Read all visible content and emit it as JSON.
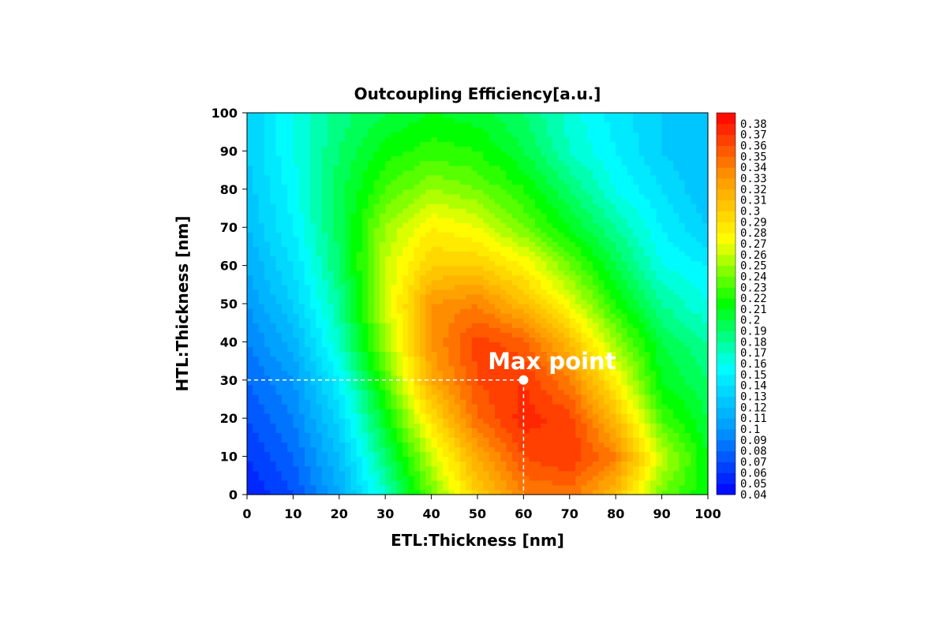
{
  "chart_data": {
    "type": "heatmap",
    "title": "Outcoupling Efficiency[a.u.]",
    "xlabel": "ETL:Thickness [nm]",
    "ylabel": "HTL:Thickness [nm]",
    "xlim": [
      0,
      100
    ],
    "ylim": [
      0,
      100
    ],
    "x_ticks": [
      "0",
      "10",
      "20",
      "30",
      "40",
      "50",
      "60",
      "70",
      "80",
      "90",
      "100"
    ],
    "y_ticks": [
      "0",
      "10",
      "20",
      "30",
      "40",
      "50",
      "60",
      "70",
      "80",
      "90",
      "100"
    ],
    "colorbar": {
      "range": [
        0.04,
        0.39
      ],
      "ticks": [
        "0.04",
        "0.05",
        "0.06",
        "0.07",
        "0.08",
        "0.09",
        "0.1",
        "0.11",
        "0.12",
        "0.13",
        "0.14",
        "0.15",
        "0.16",
        "0.17",
        "0.18",
        "0.19",
        "0.2",
        "0.21",
        "0.22",
        "0.23",
        "0.24",
        "0.25",
        "0.26",
        "0.27",
        "0.28",
        "0.29",
        "0.3",
        "0.31",
        "0.32",
        "0.33",
        "0.34",
        "0.35",
        "0.36",
        "0.37",
        "0.38"
      ],
      "colormap": [
        "#0000ff",
        "#0096ff",
        "#00ffff",
        "#00ff00",
        "#ffff00",
        "#ff9600",
        "#ff0000"
      ]
    },
    "x": [
      0,
      10,
      20,
      30,
      40,
      50,
      60,
      70,
      80,
      90,
      100
    ],
    "y": [
      0,
      10,
      20,
      30,
      40,
      50,
      60,
      70,
      80,
      90,
      100
    ],
    "z": [
      [
        0.05,
        0.07,
        0.11,
        0.17,
        0.24,
        0.3,
        0.34,
        0.345,
        0.31,
        0.24,
        0.21
      ],
      [
        0.06,
        0.08,
        0.12,
        0.19,
        0.26,
        0.32,
        0.36,
        0.37,
        0.34,
        0.26,
        0.21
      ],
      [
        0.07,
        0.09,
        0.135,
        0.21,
        0.29,
        0.35,
        0.375,
        0.365,
        0.31,
        0.23,
        0.2
      ],
      [
        0.08,
        0.1,
        0.15,
        0.23,
        0.32,
        0.36,
        0.37,
        0.34,
        0.28,
        0.21,
        0.19
      ],
      [
        0.09,
        0.115,
        0.17,
        0.25,
        0.33,
        0.365,
        0.355,
        0.31,
        0.25,
        0.2,
        0.18
      ],
      [
        0.1,
        0.13,
        0.18,
        0.26,
        0.33,
        0.34,
        0.31,
        0.27,
        0.22,
        0.18,
        0.16
      ],
      [
        0.11,
        0.14,
        0.19,
        0.26,
        0.3,
        0.3,
        0.28,
        0.24,
        0.2,
        0.16,
        0.15
      ],
      [
        0.12,
        0.15,
        0.195,
        0.25,
        0.28,
        0.27,
        0.24,
        0.21,
        0.18,
        0.15,
        0.13
      ],
      [
        0.125,
        0.155,
        0.195,
        0.23,
        0.25,
        0.24,
        0.22,
        0.19,
        0.16,
        0.14,
        0.12
      ],
      [
        0.13,
        0.16,
        0.19,
        0.215,
        0.225,
        0.22,
        0.2,
        0.17,
        0.15,
        0.13,
        0.12
      ],
      [
        0.13,
        0.16,
        0.185,
        0.2,
        0.21,
        0.205,
        0.19,
        0.165,
        0.145,
        0.13,
        0.12
      ]
    ],
    "annotations": [
      {
        "text": "Max point",
        "x": 60,
        "y": 30
      }
    ],
    "grid": false
  }
}
